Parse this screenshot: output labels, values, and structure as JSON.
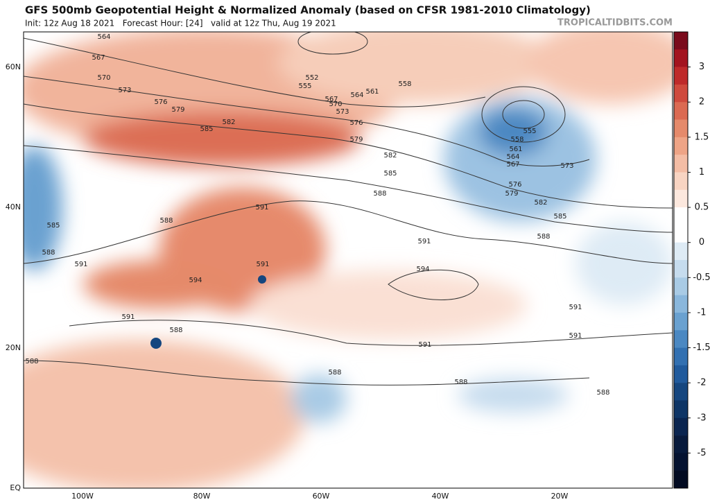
{
  "header": {
    "title": "GFS 500mb Geopotential Height & Normalized Anomaly (based on CFSR 1981-2010 Climatology)",
    "subtitle": "Init: 12z Aug 18 2021   Forecast Hour: [24]   valid at 12z Thu, Aug 19 2021",
    "credit": "TROPICALTIDBITS.COM"
  },
  "map": {
    "lat_labels": [
      "60N",
      "40N",
      "20N",
      "EQ"
    ],
    "lon_labels": [
      "100W",
      "80W",
      "60W",
      "40W",
      "20W"
    ],
    "contour_labels": [
      564,
      567,
      570,
      573,
      576,
      579,
      585,
      582,
      552,
      555,
      567,
      570,
      564,
      561,
      558,
      573,
      576,
      579,
      582,
      585,
      588,
      591,
      588,
      585,
      588,
      591,
      591,
      594,
      594,
      591,
      591,
      588,
      591,
      588,
      588,
      588,
      591,
      591,
      588,
      555,
      558,
      561,
      564,
      567,
      573,
      576,
      579,
      582,
      585,
      588
    ]
  },
  "colorbar": {
    "ticks": [
      3,
      2,
      1.5,
      1,
      0.5,
      0,
      -0.5,
      -1,
      -1.5,
      -2,
      -3,
      -5
    ],
    "colors": [
      "#7a0b1c",
      "#a3141f",
      "#be2a2a",
      "#cf4a3d",
      "#db6a52",
      "#e58a6b",
      "#eea486",
      "#f4bda5",
      "#f8d4c2",
      "#fce8de",
      "#ffffff",
      "#ffffff",
      "#deebf5",
      "#c6dcee",
      "#a9cbe5",
      "#8ab7dc",
      "#6aa1d0",
      "#4b88c2",
      "#3270b1",
      "#205a9c",
      "#15467f",
      "#0e3566",
      "#0a2550",
      "#071a3c",
      "#041230",
      "#020b22"
    ]
  }
}
